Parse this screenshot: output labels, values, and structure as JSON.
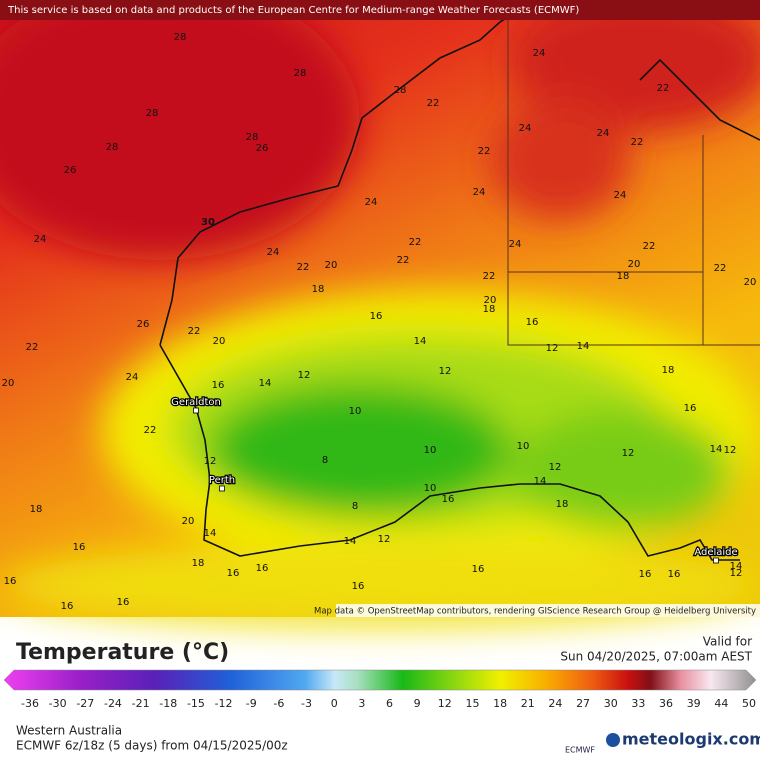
{
  "header": {
    "disclaimer": "This service is based on data and products of the European Centre for Medium-range Weather Forecasts (ECMWF)"
  },
  "map": {
    "attribution": "Map data © OpenStreetMap contributors, rendering GIScience Research Group @ Heidelberg University",
    "cities": [
      "Geraldton",
      "Perth",
      "Adelaide"
    ],
    "contour_labels": [
      "28",
      "28",
      "28",
      "28",
      "26",
      "28",
      "26",
      "28",
      "22",
      "24",
      "24",
      "24",
      "22",
      "22",
      "24",
      "22",
      "20",
      "18",
      "24",
      "22",
      "20",
      "24",
      "22",
      "24",
      "22",
      "22",
      "22",
      "20",
      "18",
      "16",
      "22",
      "20",
      "18",
      "24",
      "30",
      "24",
      "22",
      "20",
      "26",
      "24",
      "22",
      "22",
      "20",
      "16",
      "14",
      "12",
      "12",
      "14",
      "16",
      "10",
      "12",
      "14",
      "18",
      "16",
      "10",
      "10",
      "12",
      "14",
      "12",
      "8",
      "8",
      "10",
      "16",
      "14",
      "12",
      "18",
      "12",
      "20",
      "14",
      "18",
      "16",
      "18",
      "16",
      "16",
      "14",
      "12",
      "16",
      "16",
      "16",
      "16",
      "14",
      "12",
      "16",
      "16",
      "16"
    ]
  },
  "legend": {
    "title": "Temperature (°C)",
    "ticks": [
      "-36",
      "-30",
      "-27",
      "-24",
      "-21",
      "-18",
      "-15",
      "-12",
      "-9",
      "-6",
      "-3",
      "0",
      "3",
      "6",
      "9",
      "12",
      "15",
      "18",
      "21",
      "24",
      "27",
      "30",
      "33",
      "36",
      "39",
      "44",
      "50"
    ]
  },
  "footer": {
    "valid_label": "Valid for",
    "valid_time": "Sun 04/20/2025, 07:00am AEST",
    "region": "Western Australia",
    "model_run": "ECMWF 6z/18z (5 days) from 04/15/2025/00z",
    "ecmwf_logo": "ECMWF",
    "brand": "meteologix.com"
  }
}
